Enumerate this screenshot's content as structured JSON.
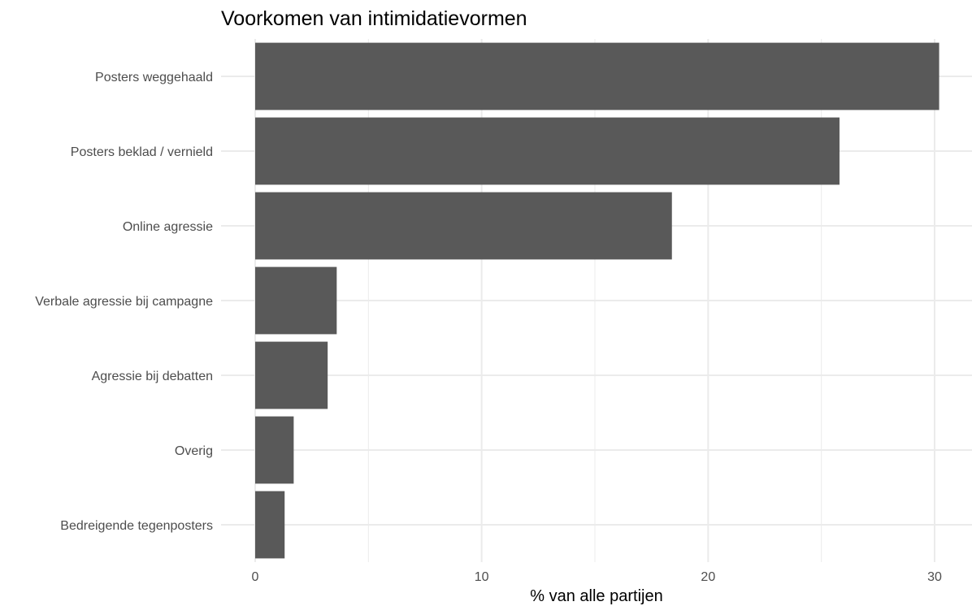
{
  "chart_data": {
    "type": "bar",
    "orientation": "horizontal",
    "title": "Voorkomen van intimidatievormen",
    "xlabel": "% van alle partijen",
    "ylabel": "",
    "categories": [
      "Posters weggehaald",
      "Posters beklad / vernield",
      "Online agressie",
      "Verbale agressie bij campagne",
      "Agressie bij debatten",
      "Overig",
      "Bedreigende tegenposters"
    ],
    "values": [
      30.2,
      25.8,
      18.4,
      3.6,
      3.2,
      1.7,
      1.3
    ],
    "xlim": [
      0,
      31
    ],
    "xticks": [
      0,
      10,
      20,
      30
    ],
    "xtick_labels": [
      "0",
      "10",
      "20",
      "30"
    ],
    "grid": true,
    "bar_color": "#595959",
    "grid_color": "#ebebeb"
  }
}
